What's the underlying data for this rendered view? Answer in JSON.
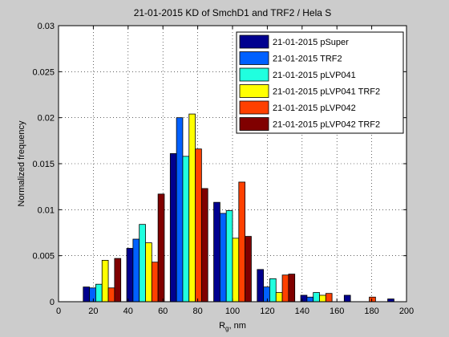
{
  "chart_data": {
    "type": "bar",
    "title": "21-01-2015 KD of SmchD1 and TRF2 / Hela S",
    "xlabel": "R",
    "xlabel_sub": "g",
    "xlabel_suffix": ", nm",
    "ylabel": "Normalized frequency",
    "xlim": [
      0,
      200
    ],
    "ylim": [
      0,
      0.03
    ],
    "xticks": [
      0,
      20,
      40,
      60,
      80,
      100,
      120,
      140,
      160,
      180,
      200
    ],
    "yticks": [
      0,
      0.005,
      0.01,
      0.015,
      0.02,
      0.025,
      0.03
    ],
    "xtick_labels": [
      "0",
      "20",
      "40",
      "60",
      "80",
      "100",
      "120",
      "140",
      "160",
      "180",
      "200"
    ],
    "ytick_labels": [
      "0",
      "0.005",
      "0.01",
      "0.015",
      "0.02",
      "0.025",
      "0.03"
    ],
    "grid": true,
    "legend_position": "top-right",
    "bin_centers": [
      25,
      50,
      75,
      100,
      125,
      150,
      175,
      200
    ],
    "bar_width": 3.6,
    "series": [
      {
        "name": "21-01-2015 pSuper",
        "color": "#00008f",
        "values": [
          0.0016,
          0.0058,
          0.0161,
          0.0108,
          0.0035,
          0.0007,
          0.0007,
          0.0003
        ]
      },
      {
        "name": "21-01-2015 TRF2",
        "color": "#0060ff",
        "values": [
          0.0015,
          0.0068,
          0.02,
          0.0096,
          0.0016,
          0.0005,
          0.0,
          0.0
        ]
      },
      {
        "name": "21-01-2015 pLVP041",
        "color": "#20ffdf",
        "values": [
          0.0019,
          0.0084,
          0.0158,
          0.0099,
          0.0025,
          0.001,
          0.0,
          0.0
        ]
      },
      {
        "name": "21-01-2015 pLVP041 TRF2",
        "color": "#ffff00",
        "values": [
          0.0045,
          0.0064,
          0.0204,
          0.0069,
          0.001,
          0.0007,
          0.0,
          0.0
        ]
      },
      {
        "name": "21-01-2015 pLVP042",
        "color": "#ff4000",
        "values": [
          0.0015,
          0.0043,
          0.0166,
          0.013,
          0.0029,
          0.0009,
          0.0005,
          0.0
        ]
      },
      {
        "name": "21-01-2015 pLVP042 TRF2",
        "color": "#800000",
        "values": [
          0.0047,
          0.0117,
          0.0123,
          0.0071,
          0.003,
          0.0,
          0.0,
          0.0
        ]
      }
    ]
  }
}
